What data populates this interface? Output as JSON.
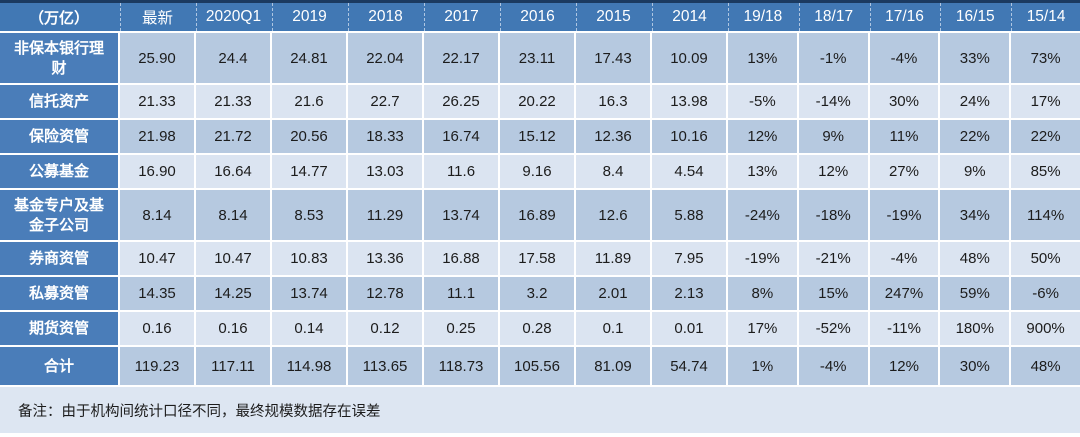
{
  "table": {
    "unit_label": "（万亿）",
    "columns": [
      "最新",
      "2020Q1",
      "2019",
      "2018",
      "2017",
      "2016",
      "2015",
      "2014",
      "19/18",
      "18/17",
      "17/16",
      "16/15",
      "15/14"
    ],
    "rows": [
      {
        "label": "非保本银行理财",
        "values": [
          "25.90",
          "24.4",
          "24.81",
          "22.04",
          "22.17",
          "23.11",
          "17.43",
          "10.09",
          "13%",
          "-1%",
          "-4%",
          "33%",
          "73%"
        ]
      },
      {
        "label": "信托资产",
        "values": [
          "21.33",
          "21.33",
          "21.6",
          "22.7",
          "26.25",
          "20.22",
          "16.3",
          "13.98",
          "-5%",
          "-14%",
          "30%",
          "24%",
          "17%"
        ]
      },
      {
        "label": "保险资管",
        "values": [
          "21.98",
          "21.72",
          "20.56",
          "18.33",
          "16.74",
          "15.12",
          "12.36",
          "10.16",
          "12%",
          "9%",
          "11%",
          "22%",
          "22%"
        ]
      },
      {
        "label": "公募基金",
        "values": [
          "16.90",
          "16.64",
          "14.77",
          "13.03",
          "11.6",
          "9.16",
          "8.4",
          "4.54",
          "13%",
          "12%",
          "27%",
          "9%",
          "85%"
        ]
      },
      {
        "label": "基金专户及基金子公司",
        "values": [
          "8.14",
          "8.14",
          "8.53",
          "11.29",
          "13.74",
          "16.89",
          "12.6",
          "5.88",
          "-24%",
          "-18%",
          "-19%",
          "34%",
          "114%"
        ]
      },
      {
        "label": "券商资管",
        "values": [
          "10.47",
          "10.47",
          "10.83",
          "13.36",
          "16.88",
          "17.58",
          "11.89",
          "7.95",
          "-19%",
          "-21%",
          "-4%",
          "48%",
          "50%"
        ]
      },
      {
        "label": "私募资管",
        "values": [
          "14.35",
          "14.25",
          "13.74",
          "12.78",
          "11.1",
          "3.2",
          "2.01",
          "2.13",
          "8%",
          "15%",
          "247%",
          "59%",
          "-6%"
        ]
      },
      {
        "label": "期货资管",
        "values": [
          "0.16",
          "0.16",
          "0.14",
          "0.12",
          "0.25",
          "0.28",
          "0.1",
          "0.01",
          "17%",
          "-52%",
          "-11%",
          "180%",
          "900%"
        ]
      },
      {
        "label": "合计",
        "values": [
          "119.23",
          "117.11",
          "114.98",
          "113.65",
          "118.73",
          "105.56",
          "81.09",
          "54.74",
          "1%",
          "-4%",
          "12%",
          "30%",
          "48%"
        ]
      }
    ],
    "note": "备注：由于机构间统计口径不同，最终规模数据存在误差"
  },
  "colors": {
    "top_border": "#1b3a60",
    "header_bg": "#4178b4",
    "label_bg": "#4a7db9",
    "row_dark_bg": "#b6c9e0",
    "row_light_bg": "#dbe4f1",
    "note_bg": "#dde6f2",
    "header_text": "#ffffff",
    "cell_text": "#1c1c1c"
  },
  "chart_data": {
    "type": "table",
    "title": "",
    "unit": "万亿",
    "columns": [
      "最新",
      "2020Q1",
      "2019",
      "2018",
      "2017",
      "2016",
      "2015",
      "2014",
      "19/18",
      "18/17",
      "17/16",
      "16/15",
      "15/14"
    ],
    "series": [
      {
        "name": "非保本银行理财",
        "values": [
          25.9,
          24.4,
          24.81,
          22.04,
          22.17,
          23.11,
          17.43,
          10.09
        ],
        "yoy": [
          "13%",
          "-1%",
          "-4%",
          "33%",
          "73%"
        ]
      },
      {
        "name": "信托资产",
        "values": [
          21.33,
          21.33,
          21.6,
          22.7,
          26.25,
          20.22,
          16.3,
          13.98
        ],
        "yoy": [
          "-5%",
          "-14%",
          "30%",
          "24%",
          "17%"
        ]
      },
      {
        "name": "保险资管",
        "values": [
          21.98,
          21.72,
          20.56,
          18.33,
          16.74,
          15.12,
          12.36,
          10.16
        ],
        "yoy": [
          "12%",
          "9%",
          "11%",
          "22%",
          "22%"
        ]
      },
      {
        "name": "公募基金",
        "values": [
          16.9,
          16.64,
          14.77,
          13.03,
          11.6,
          9.16,
          8.4,
          4.54
        ],
        "yoy": [
          "13%",
          "12%",
          "27%",
          "9%",
          "85%"
        ]
      },
      {
        "name": "基金专户及基金子公司",
        "values": [
          8.14,
          8.14,
          8.53,
          11.29,
          13.74,
          16.89,
          12.6,
          5.88
        ],
        "yoy": [
          "-24%",
          "-18%",
          "-19%",
          "34%",
          "114%"
        ]
      },
      {
        "name": "券商资管",
        "values": [
          10.47,
          10.47,
          10.83,
          13.36,
          16.88,
          17.58,
          11.89,
          7.95
        ],
        "yoy": [
          "-19%",
          "-21%",
          "-4%",
          "48%",
          "50%"
        ]
      },
      {
        "name": "私募资管",
        "values": [
          14.35,
          14.25,
          13.74,
          12.78,
          11.1,
          3.2,
          2.01,
          2.13
        ],
        "yoy": [
          "8%",
          "15%",
          "247%",
          "59%",
          "-6%"
        ]
      },
      {
        "name": "期货资管",
        "values": [
          0.16,
          0.16,
          0.14,
          0.12,
          0.25,
          0.28,
          0.1,
          0.01
        ],
        "yoy": [
          "17%",
          "-52%",
          "-11%",
          "180%",
          "900%"
        ]
      },
      {
        "name": "合计",
        "values": [
          119.23,
          117.11,
          114.98,
          113.65,
          118.73,
          105.56,
          81.09,
          54.74
        ],
        "yoy": [
          "1%",
          "-4%",
          "12%",
          "30%",
          "48%"
        ]
      }
    ],
    "note": "备注：由于机构间统计口径不同，最终规模数据存在误差"
  }
}
